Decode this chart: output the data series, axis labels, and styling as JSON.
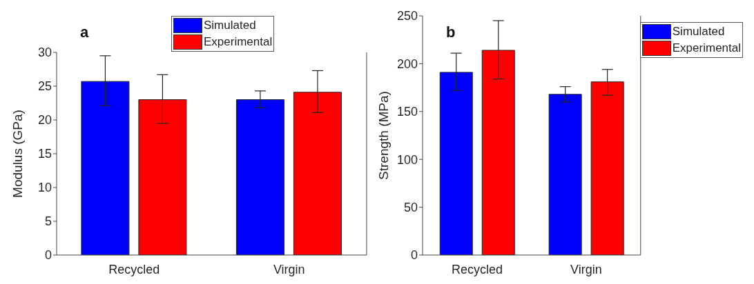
{
  "chart_data": [
    {
      "type": "bar",
      "categories": [
        "Recycled",
        "Virgin"
      ],
      "ylabel": "Modulus (GPa)",
      "ylim": [
        0,
        30
      ],
      "yticks": [
        0,
        5,
        10,
        15,
        20,
        25,
        30
      ],
      "annotations": [
        "a"
      ],
      "legend": "top",
      "grid": false,
      "series": [
        {
          "name": "Simulated",
          "color": "#0000ff",
          "values": [
            25.7,
            23.0
          ],
          "errors": [
            [
              22.1,
              29.5
            ],
            [
              21.8,
              24.3
            ]
          ]
        },
        {
          "name": "Experimental",
          "color": "#ff0000",
          "values": [
            23.0,
            24.1
          ],
          "errors": [
            [
              19.5,
              26.7
            ],
            [
              21.1,
              27.3
            ]
          ]
        }
      ]
    },
    {
      "type": "bar",
      "categories": [
        "Recycled",
        "Virgin"
      ],
      "ylabel": "Strength (MPa)",
      "ylim": [
        0,
        250
      ],
      "yticks": [
        0,
        50,
        100,
        150,
        200,
        250
      ],
      "annotations": [
        "b"
      ],
      "legend": "top right",
      "grid": false,
      "series": [
        {
          "name": "Simulated",
          "color": "#0000ff",
          "values": [
            191,
            168
          ],
          "errors": [
            [
              172,
              211
            ],
            [
              160,
              176
            ]
          ]
        },
        {
          "name": "Experimental",
          "color": "#ff0000",
          "values": [
            214,
            181
          ],
          "errors": [
            [
              184,
              245
            ],
            [
              167,
              194
            ]
          ]
        }
      ]
    }
  ]
}
